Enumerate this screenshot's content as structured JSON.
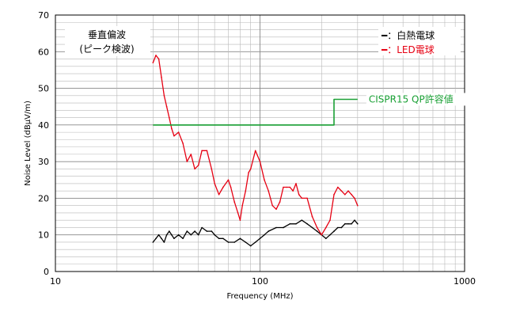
{
  "chart_data": {
    "type": "line",
    "title": "",
    "xlabel": "Frequency (MHz)",
    "ylabel": "Noise Level (dBμV/m)",
    "x_scale": "log",
    "xlim": [
      10,
      1000
    ],
    "ylim": [
      0,
      70
    ],
    "grid": true,
    "x_ticks": [
      "10",
      "100",
      "1000"
    ],
    "y_ticks": [
      "0",
      "10",
      "20",
      "30",
      "40",
      "50",
      "60",
      "70"
    ],
    "annotation_box": [
      "垂直偏波",
      "(ピーク検波)"
    ],
    "legend": [
      {
        "label": "━：白熱電球",
        "color": "#000000"
      },
      {
        "label": "━：LED電球",
        "color": "#e60012"
      }
    ],
    "limit_label": "CISPR15 QP許容値",
    "series": [
      {
        "name": "白熱電球",
        "color": "#000000",
        "x": [
          30,
          31,
          32,
          33,
          34,
          35,
          36,
          37,
          38,
          40,
          42,
          44,
          46,
          48,
          50,
          52,
          55,
          58,
          60,
          63,
          66,
          70,
          75,
          80,
          85,
          90,
          95,
          100,
          105,
          110,
          120,
          130,
          140,
          150,
          160,
          170,
          180,
          190,
          200,
          210,
          220,
          230,
          240,
          250,
          260,
          270,
          280,
          290,
          300
        ],
        "values": [
          8,
          9,
          10,
          9,
          8,
          10,
          11,
          10,
          9,
          10,
          9,
          11,
          10,
          11,
          10,
          12,
          11,
          11,
          10,
          9,
          9,
          8,
          8,
          9,
          8,
          7,
          8,
          9,
          10,
          11,
          12,
          12,
          13,
          13,
          14,
          13,
          12,
          11,
          10,
          9,
          10,
          11,
          12,
          12,
          13,
          13,
          13,
          14,
          13
        ]
      },
      {
        "name": "LED電球",
        "color": "#e60012",
        "x": [
          30,
          31,
          32,
          33,
          34,
          35,
          36,
          37,
          38,
          40,
          42,
          44,
          46,
          48,
          50,
          52,
          55,
          58,
          60,
          63,
          66,
          70,
          72,
          75,
          78,
          80,
          82,
          85,
          88,
          90,
          95,
          100,
          105,
          110,
          115,
          120,
          125,
          130,
          135,
          140,
          145,
          150,
          155,
          160,
          170,
          180,
          190,
          200,
          210,
          220,
          230,
          240,
          250,
          260,
          270,
          280,
          290,
          300
        ],
        "values": [
          57,
          59,
          58,
          53,
          48,
          45,
          42,
          39,
          37,
          38,
          35,
          30,
          32,
          28,
          29,
          33,
          33,
          28,
          24,
          21,
          23,
          25,
          23,
          19,
          16,
          14,
          18,
          22,
          27,
          28,
          33,
          30,
          25,
          22,
          18,
          17,
          19,
          23,
          23,
          23,
          22,
          24,
          21,
          20,
          20,
          15,
          12,
          10,
          12,
          14,
          21,
          23,
          22,
          21,
          22,
          21,
          20,
          18
        ]
      },
      {
        "name": "CISPR15 QP許容値",
        "color": "#1aa035",
        "x": [
          30,
          230,
          230,
          300
        ],
        "values": [
          40,
          40,
          47,
          47
        ]
      }
    ]
  }
}
